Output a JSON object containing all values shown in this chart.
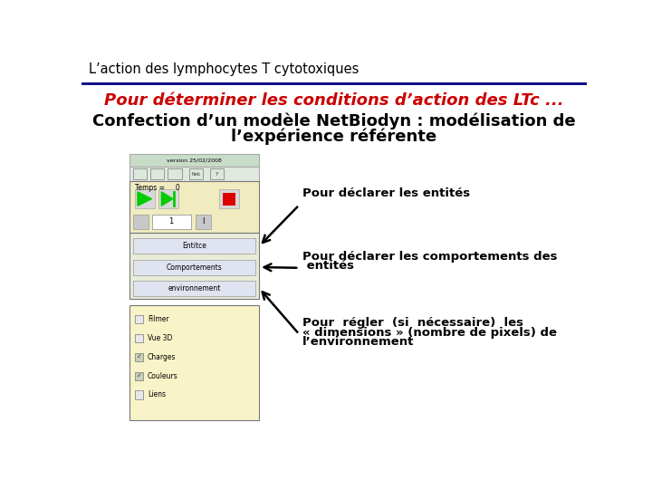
{
  "bg_color": "#ffffff",
  "title_bar_text": "L’action des lymphocytes T cytotoxiques",
  "title_bar_text_color": "#000000",
  "title_bar_fontsize": 10.5,
  "separator_color": "#000080",
  "subtitle_text": "Pour déterminer les conditions d’action des LTc ...",
  "subtitle_color": "#cc0000",
  "subtitle_fontsize": 13,
  "body_line1": "Confection d’un modèle NetBiodyn : modélisation de",
  "body_line2": "l’expérience référente",
  "body_color": "#000000",
  "body_fontsize": 13,
  "annotation1": "Pour déclarer les entités",
  "annotation2_l1": "Pour déclarer les comportements des",
  "annotation2_l2": " entités",
  "annotation3_l1": "Pour  régler  (si  nécessaire)  les",
  "annotation3_l2": "« dimensions » (nombre de pixels) de",
  "annotation3_l3": "l’environnement",
  "annotation_fontsize": 9.5,
  "annotation_color": "#000000",
  "gui_title_text": "version 25/02/2008",
  "gui_bg_titlebar": "#c8dcc8",
  "gui_bg_toolbar": "#e0e8e0",
  "gui_bg_controls": "#f0ecc0",
  "gui_bg_buttons": "#e8ecd8",
  "gui_bg_checkboxes": "#f8f4c8",
  "gui_border": "#888888",
  "gui_btn_labels": [
    "Entitce",
    "Comportements",
    "environnement"
  ],
  "check_labels": [
    "Filmer",
    "Vue 3D",
    "Charges",
    "Couleurs",
    "Liens"
  ],
  "check_states": [
    false,
    false,
    true,
    true,
    false
  ]
}
